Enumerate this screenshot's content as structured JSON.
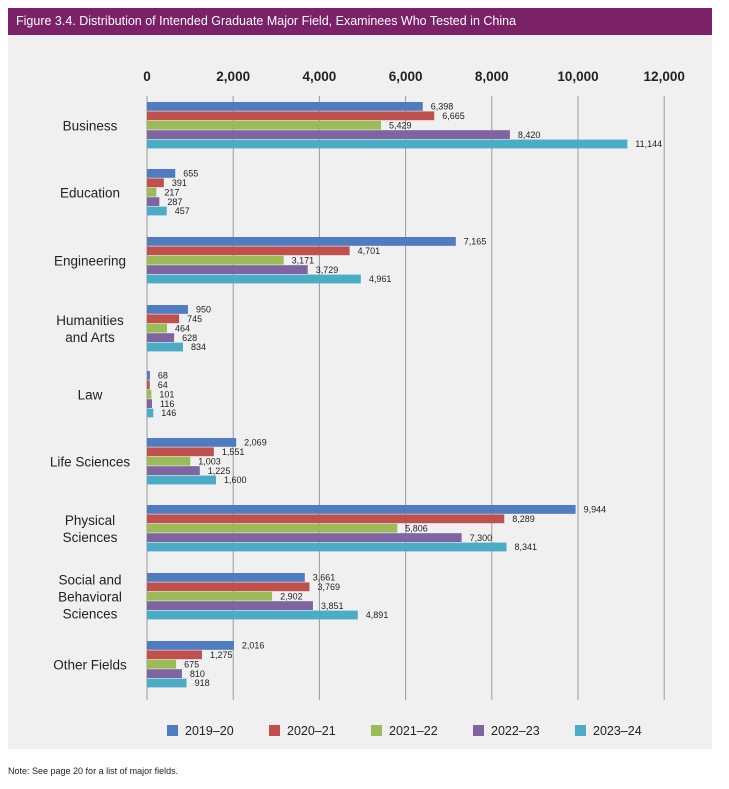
{
  "figure_title": "Figure 3.4. Distribution of Intended Graduate Major Field, Examinees Who Tested in China",
  "footnote": "Note: See page 20 for a list of major fields.",
  "colors": {
    "title_bg": "#7a2168",
    "panel_bg": "#f0f0f0",
    "series": [
      "#4f7bbf",
      "#c0504d",
      "#9bbb59",
      "#8064a2",
      "#4bacc6"
    ]
  },
  "chart_data": {
    "type": "bar",
    "orientation": "horizontal",
    "title": "Distribution of Intended Graduate Major Field, Examinees Who Tested in China",
    "xlabel": "",
    "ylabel": "",
    "xlim": [
      0,
      12000
    ],
    "ticks": [
      0,
      2000,
      4000,
      6000,
      8000,
      10000,
      12000
    ],
    "tick_labels": [
      "0",
      "2,000",
      "4,000",
      "6,000",
      "8,000",
      "10,000",
      "12,000"
    ],
    "grid": true,
    "legend_position": "bottom",
    "categories": [
      [
        "Business"
      ],
      [
        "Education"
      ],
      [
        "Engineering"
      ],
      [
        "Humanities",
        "and Arts"
      ],
      [
        "Law"
      ],
      [
        "Life Sciences"
      ],
      [
        "Physical",
        "Sciences"
      ],
      [
        "Social and",
        "Behavioral",
        "Sciences"
      ],
      [
        "Other Fields"
      ]
    ],
    "series": [
      {
        "name": "2019–20",
        "values": [
          6398,
          655,
          7165,
          950,
          68,
          2069,
          9944,
          3661,
          2016
        ]
      },
      {
        "name": "2020–21",
        "values": [
          6665,
          391,
          4701,
          745,
          64,
          1551,
          8289,
          3769,
          1275
        ]
      },
      {
        "name": "2021–22",
        "values": [
          5429,
          217,
          3171,
          464,
          101,
          1003,
          5806,
          2902,
          675
        ]
      },
      {
        "name": "2022–23",
        "values": [
          8420,
          287,
          3729,
          628,
          116,
          1225,
          7300,
          3851,
          810
        ]
      },
      {
        "name": "2023–24",
        "values": [
          11144,
          457,
          4961,
          834,
          146,
          1600,
          8341,
          4891,
          918
        ]
      }
    ]
  }
}
